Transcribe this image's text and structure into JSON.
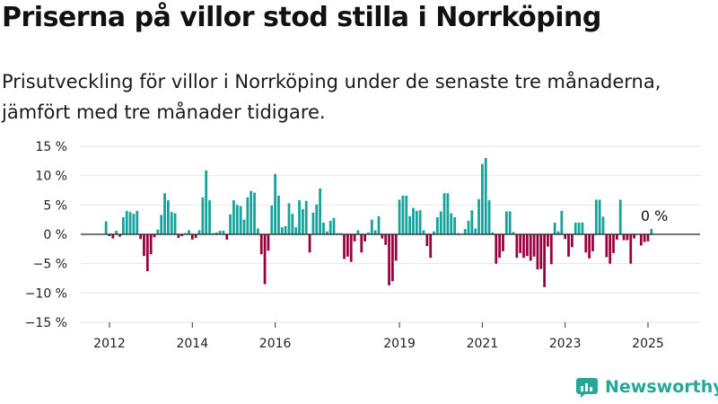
{
  "title": "Priserna på villor stod stilla i Norrköping",
  "subtitle": "Prisutveckling för villor i Norrköping under de senaste tre månaderna, jämfört med tre månader tidigare.",
  "brand": {
    "name": "Newsworthy",
    "icon": "newsworthy-chart-icon",
    "color": "#27a79b"
  },
  "colors": {
    "positive": "#14a29b",
    "negative": "#99003f",
    "baseline": "#222222",
    "grid": "#e6e6e6"
  },
  "chart_data": {
    "type": "bar",
    "x_start": "2011-12",
    "x_end": "2025-06",
    "ylim": [
      -15,
      15
    ],
    "yticks": [
      15,
      10,
      5,
      0,
      -5,
      -10,
      -15
    ],
    "ytick_labels": [
      "15 %",
      "10 %",
      "5 %",
      "0 %",
      "−5 %",
      "−10 %",
      "−15 %"
    ],
    "xticks": [
      "2012",
      "2014",
      "2016",
      "2019",
      "2021",
      "2023",
      "2025"
    ],
    "grid": true,
    "annotation": "0 %",
    "series": [
      {
        "start": "2011-12",
        "values": [
          2.2,
          -0.3,
          -0.7,
          0.6,
          -0.4,
          2.9,
          4.0,
          3.8,
          3.5,
          4.0,
          -0.8,
          -3.7,
          -6.3,
          -3.4,
          -0.5,
          0.8,
          3.3,
          7.0,
          5.8,
          3.8,
          3.6,
          -0.6,
          -0.3,
          0.2,
          0.7,
          -0.9,
          -0.6,
          0.7,
          6.3,
          10.9,
          5.8,
          0.2,
          0.3,
          0.6,
          0.6,
          -0.9,
          3.4,
          5.8,
          5.0,
          4.8,
          2.5,
          6.3,
          7.4,
          7.1,
          1.0,
          -3.4,
          -8.5,
          -2.8,
          4.9,
          10.3,
          6.6,
          1.2,
          1.4,
          5.3,
          3.5,
          1.2,
          5.8,
          4.3,
          5.7,
          -3.1,
          3.7,
          5.1,
          7.8,
          2.0,
          0.5,
          2.3,
          2.8,
          0.2,
          0.2,
          -4.2,
          -3.8,
          -4.7,
          -1.2,
          0.7,
          -3.1,
          -1.2,
          0.3,
          2.5,
          0.7,
          3.1,
          -0.7,
          -1.8,
          -8.7,
          -8.0,
          -4.5,
          5.9,
          6.6,
          6.6,
          3.1,
          4.5,
          4.0,
          4.1,
          0.7,
          -2.0,
          -4.0,
          0.5,
          2.9,
          3.9,
          7.0,
          7.0,
          3.6,
          2.9,
          0.2,
          0.1,
          0.9,
          2.3,
          4.1,
          1.0,
          6.0,
          12.0,
          13.0,
          5.8,
          0.3,
          -5.0,
          -4.0,
          -2.9,
          3.9,
          3.9,
          0.4,
          -4.0,
          -3.2,
          -4.0,
          -3.7,
          -4.5,
          -3.8,
          -6.0,
          -5.9,
          -9.0,
          -2.1,
          -5.1,
          2.0,
          0.5,
          4.0,
          -0.8,
          -3.8,
          -2.2,
          2.0,
          2.0,
          2.0,
          -3.1,
          -4.1,
          -2.9,
          5.9,
          5.9,
          3.0,
          -3.9,
          -5.0,
          -3.2,
          -0.9,
          5.9,
          -1.0,
          -1.0,
          -5.0,
          -0.7,
          -0.1,
          -1.9,
          -1.3,
          -1.2,
          0.9
        ]
      }
    ]
  }
}
